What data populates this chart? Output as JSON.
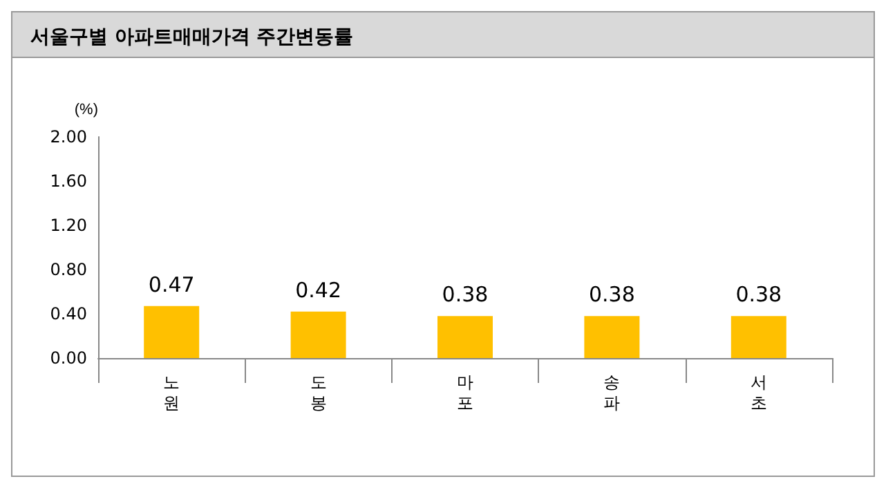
{
  "chart_data": {
    "type": "bar",
    "title": "서울구별 아파트매매가격 주간변동률",
    "ylabel": "(%)",
    "categories": [
      "노원",
      "도봉",
      "마포",
      "송파",
      "서초"
    ],
    "values": [
      0.47,
      0.42,
      0.38,
      0.38,
      0.38
    ],
    "color": "#ffc000",
    "ylim": [
      0,
      2
    ],
    "yticks": [
      {
        "value": 0,
        "label": "0.00"
      },
      {
        "value": 0.4,
        "label": "0.40"
      },
      {
        "value": 0.8,
        "label": "0.80"
      },
      {
        "value": 1.2,
        "label": "1.20"
      },
      {
        "value": 1.6,
        "label": "1.60"
      },
      {
        "value": 2,
        "label": "2.00"
      }
    ],
    "grid": false,
    "data_labels": true
  }
}
